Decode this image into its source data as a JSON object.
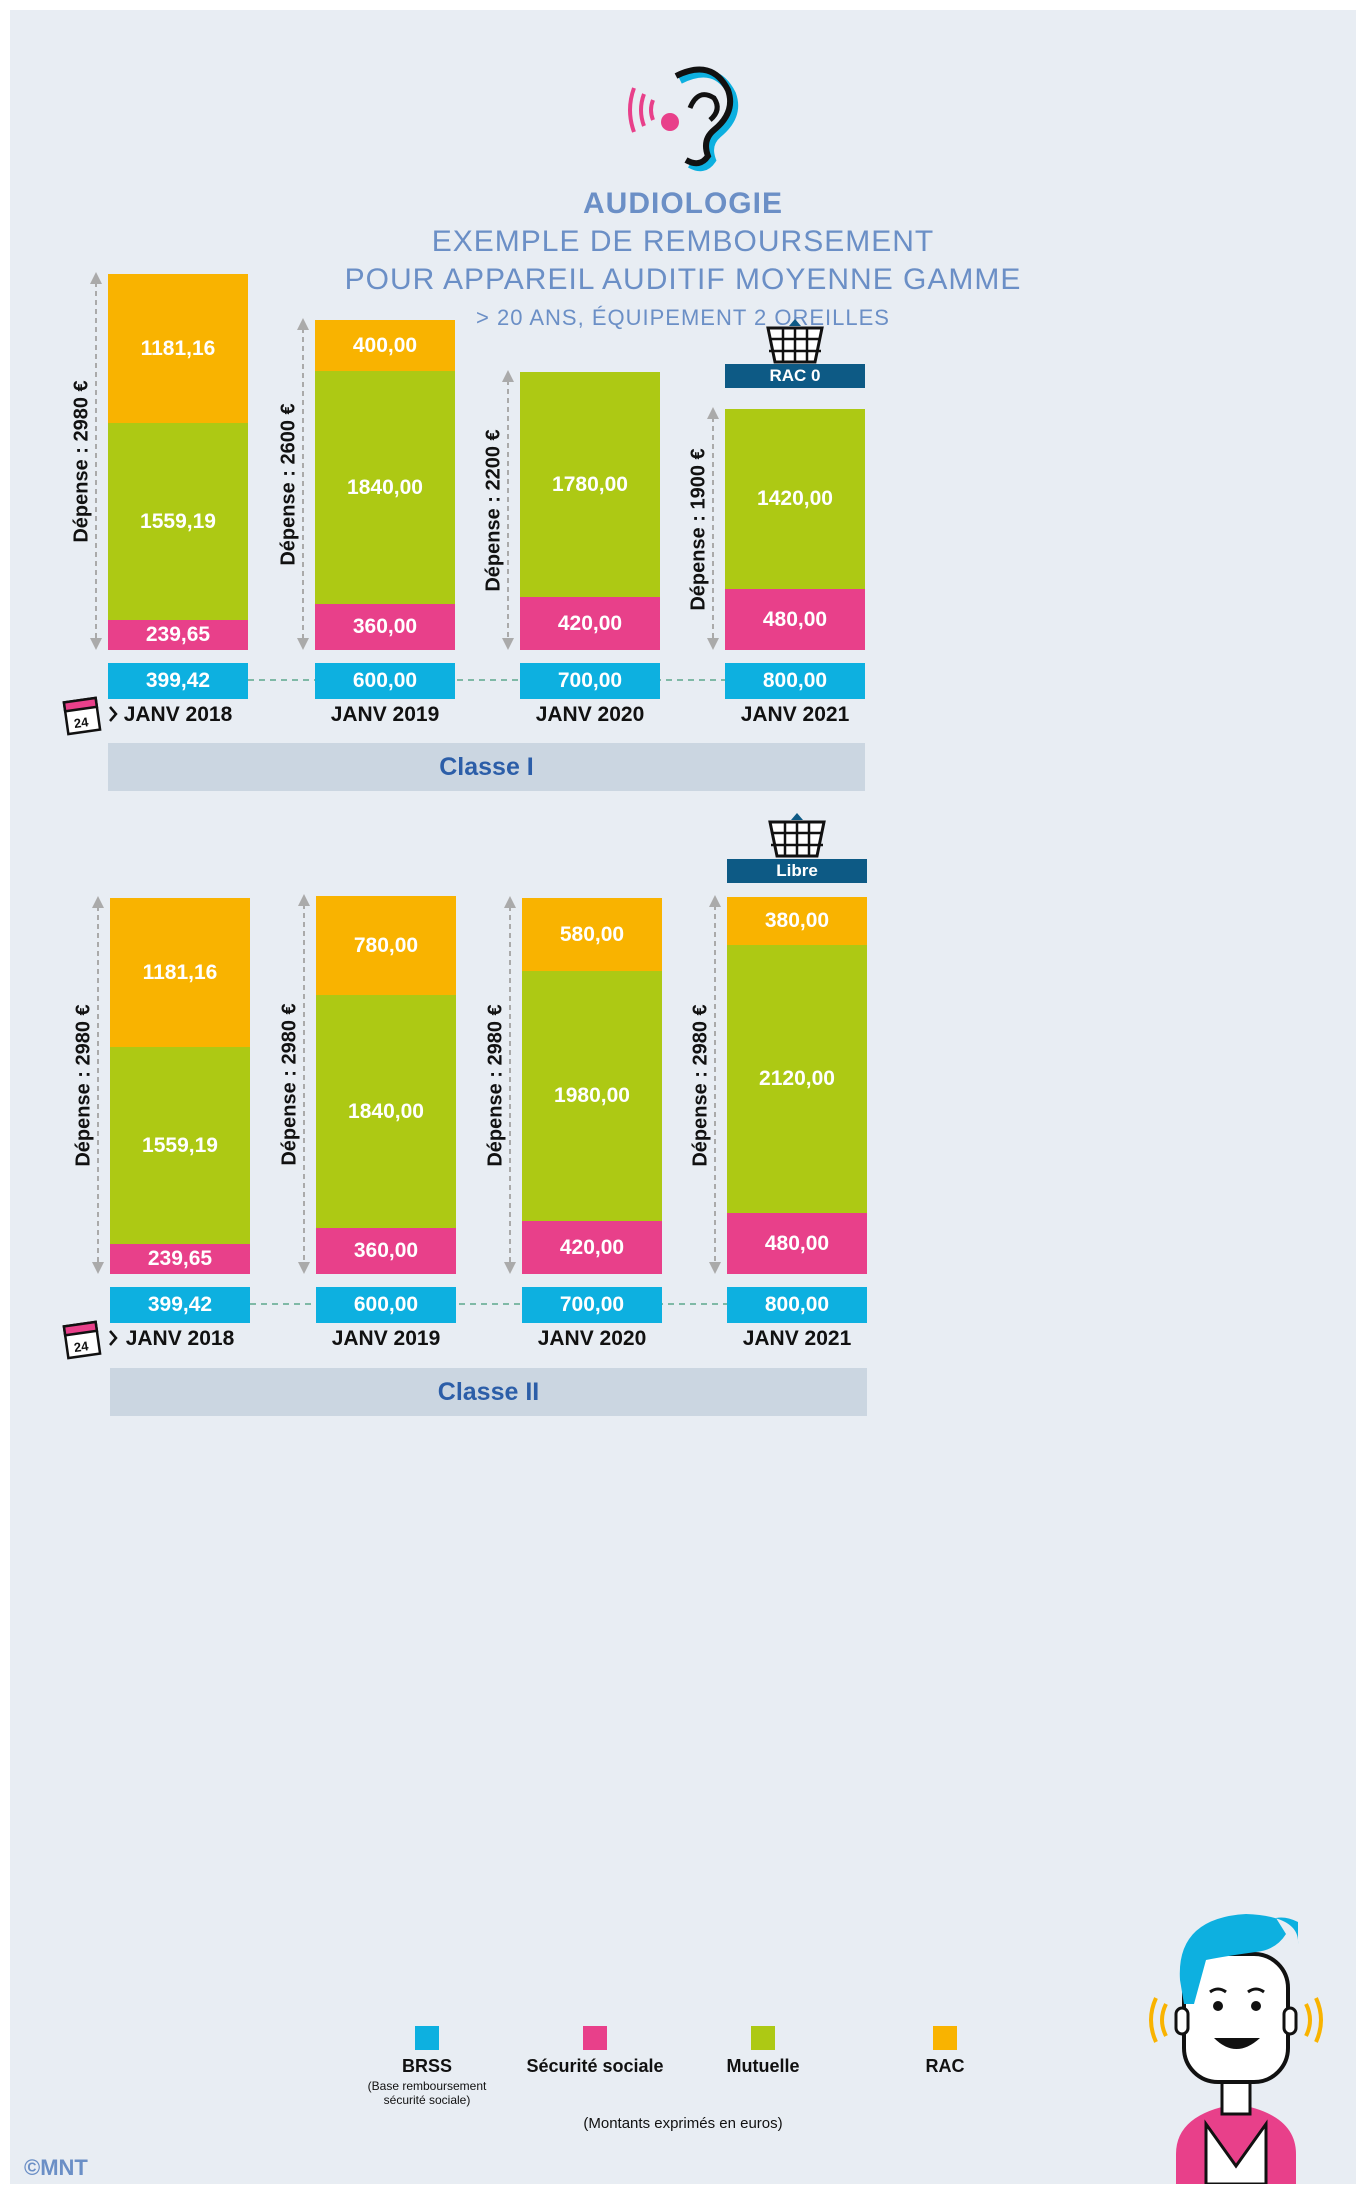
{
  "header": {
    "title": "AUDIOLOGIE",
    "line2": "EXEMPLE DE REMBOURSEMENT",
    "line3": "POUR APPAREIL AUDITIF MOYENNE GAMME",
    "line4": "> 20 ANS, ÉQUIPEMENT 2 OREILLES"
  },
  "colors": {
    "brss": "#0db0e0",
    "secu": "#e8408a",
    "mutuelle": "#adc914",
    "rac": "#f9b300",
    "badge": "#0d5a85",
    "title": "#6b8fc6"
  },
  "chart_data": [
    {
      "type": "bar",
      "name": "Classe I",
      "title": "Classe I",
      "badge": "RAC 0",
      "calendar_day": "24",
      "categories": [
        "JANV 2018",
        "JANV 2019",
        "JANV 2020",
        "JANV 2021"
      ],
      "depense_labels": [
        "Dépense : 2980 €",
        "Dépense : 2600 €",
        "Dépense : 2200 €",
        "Dépense : 1900 €"
      ],
      "depense": [
        2980,
        2600,
        2200,
        1900
      ],
      "brss": [
        "399,42",
        "600,00",
        "700,00",
        "800,00"
      ],
      "series": [
        {
          "name": "Sécurité sociale",
          "key": "secu",
          "values": [
            239.65,
            360,
            420,
            480
          ],
          "labels": [
            "239,65",
            "360,00",
            "420,00",
            "480,00"
          ]
        },
        {
          "name": "Mutuelle",
          "key": "mutuelle",
          "values": [
            1559.19,
            1840,
            1780,
            1420
          ],
          "labels": [
            "1559,19",
            "1840,00",
            "1780,00",
            "1420,00"
          ]
        },
        {
          "name": "RAC",
          "key": "rac",
          "values": [
            1181.16,
            400,
            0,
            0
          ],
          "labels": [
            "1181,16",
            "400,00",
            "",
            ""
          ]
        }
      ]
    },
    {
      "type": "bar",
      "name": "Classe II",
      "title": "Classe II",
      "badge": "Libre",
      "calendar_day": "24",
      "categories": [
        "JANV 2018",
        "JANV 2019",
        "JANV 2020",
        "JANV 2021"
      ],
      "depense_labels": [
        "Dépense : 2980 €",
        "Dépense : 2980 €",
        "Dépense : 2980 €",
        "Dépense : 2980 €"
      ],
      "depense": [
        2980,
        2980,
        2980,
        2980
      ],
      "brss": [
        "399,42",
        "600,00",
        "700,00",
        "800,00"
      ],
      "series": [
        {
          "name": "Sécurité sociale",
          "key": "secu",
          "values": [
            239.65,
            360,
            420,
            480
          ],
          "labels": [
            "239,65",
            "360,00",
            "420,00",
            "480,00"
          ]
        },
        {
          "name": "Mutuelle",
          "key": "mutuelle",
          "values": [
            1559.19,
            1840,
            1980,
            2120
          ],
          "labels": [
            "1559,19",
            "1840,00",
            "1980,00",
            "2120,00"
          ]
        },
        {
          "name": "RAC",
          "key": "rac",
          "values": [
            1181.16,
            780,
            580,
            380
          ],
          "labels": [
            "1181,16",
            "780,00",
            "580,00",
            "380,00"
          ]
        }
      ]
    }
  ],
  "legend": {
    "brss": "BRSS",
    "brss_sub": "(Base remboursement sécurité sociale)",
    "secu": "Sécurité sociale",
    "mutuelle": "Mutuelle",
    "rac": "RAC"
  },
  "footnote": "(Montants exprimés en euros)",
  "copyright": "©MNT"
}
